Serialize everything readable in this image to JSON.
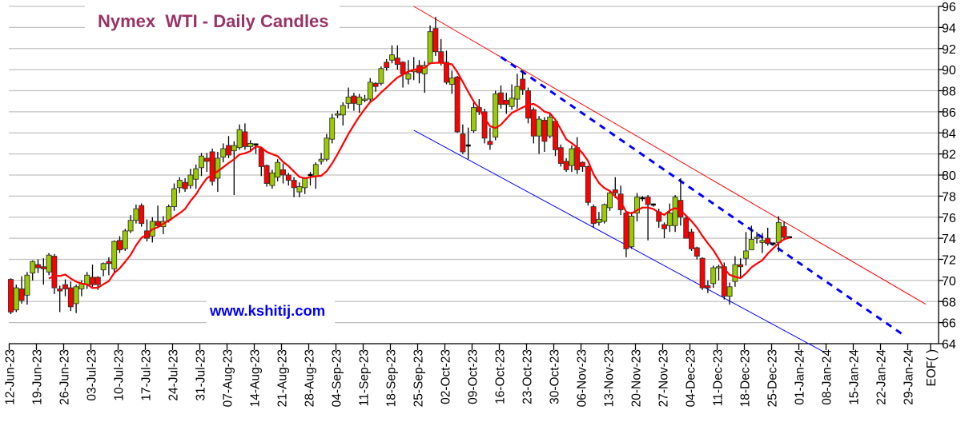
{
  "chart_data": {
    "type": "candlestick",
    "title": "Nymex  WTI - Daily Candles",
    "watermark": "www.kshitij.com",
    "ylim": [
      64,
      96
    ],
    "yticks": [
      64,
      66,
      68,
      70,
      72,
      74,
      76,
      78,
      80,
      82,
      84,
      86,
      88,
      90,
      92,
      94,
      96
    ],
    "y_axis_side": "right",
    "grid": true,
    "xtick_labels": [
      "12-Jun-23",
      "19-Jun-23",
      "26-Jun-23",
      "03-Jul-23",
      "10-Jul-23",
      "17-Jul-23",
      "24-Jul-23",
      "31-Jul-23",
      "07-Aug-23",
      "14-Aug-23",
      "21-Aug-23",
      "28-Aug-23",
      "04-Sep-23",
      "11-Sep-23",
      "18-Sep-23",
      "25-Sep-23",
      "02-Oct-23",
      "09-Oct-23",
      "16-Oct-23",
      "23-Oct-23",
      "30-Oct-23",
      "06-Nov-23",
      "13-Nov-23",
      "20-Nov-23",
      "27-Nov-23",
      "04-Dec-23",
      "11-Dec-23",
      "18-Dec-23",
      "25-Dec-23",
      "01-Jan-24",
      "08-Jan-24",
      "15-Jan-24",
      "22-Jan-24",
      "29-Jan-24"
    ],
    "xtick_end_label": "EOF( )",
    "candle_fields": [
      "open",
      "high",
      "low",
      "close"
    ],
    "candles": [
      [
        70.1,
        70.2,
        66.8,
        67.0
      ],
      [
        67.2,
        69.6,
        67.0,
        69.3
      ],
      [
        69.2,
        70.4,
        67.8,
        68.1
      ],
      [
        68.6,
        70.8,
        67.7,
        70.5
      ],
      [
        70.7,
        71.9,
        70.0,
        71.8
      ],
      [
        71.5,
        72.0,
        70.7,
        71.2
      ],
      [
        71.3,
        72.1,
        69.6,
        71.1
      ],
      [
        70.8,
        72.6,
        70.5,
        72.4
      ],
      [
        72.3,
        72.5,
        68.7,
        69.3
      ],
      [
        69.2,
        69.5,
        67.0,
        69.0
      ],
      [
        69.6,
        70.1,
        68.5,
        69.2
      ],
      [
        69.3,
        69.9,
        67.1,
        67.5
      ],
      [
        67.8,
        69.6,
        66.9,
        69.4
      ],
      [
        69.2,
        70.0,
        68.5,
        69.7
      ],
      [
        69.6,
        70.8,
        69.2,
        70.5
      ],
      [
        70.3,
        71.5,
        69.4,
        69.6
      ],
      [
        70.3,
        70.4,
        69.1,
        69.6
      ],
      [
        71.0,
        71.7,
        70.4,
        71.6
      ],
      [
        71.8,
        72.2,
        70.5,
        71.6
      ],
      [
        71.1,
        73.8,
        70.8,
        73.7
      ],
      [
        73.8,
        74.2,
        72.6,
        72.9
      ],
      [
        73.0,
        74.9,
        72.8,
        74.7
      ],
      [
        74.7,
        76.2,
        74.5,
        75.7
      ],
      [
        75.7,
        77.2,
        75.4,
        76.8
      ],
      [
        77.1,
        77.3,
        75.1,
        75.4
      ],
      [
        74.7,
        75.8,
        73.7,
        74.0
      ],
      [
        74.2,
        76.0,
        73.6,
        75.6
      ],
      [
        75.6,
        77.1,
        75.0,
        75.2
      ],
      [
        75.1,
        76.1,
        74.4,
        75.6
      ],
      [
        75.7,
        77.2,
        75.5,
        77.0
      ],
      [
        77.0,
        79.2,
        76.6,
        78.7
      ],
      [
        78.8,
        79.8,
        78.3,
        79.5
      ],
      [
        79.3,
        79.7,
        78.4,
        78.7
      ],
      [
        79.0,
        80.6,
        78.7,
        80.0
      ],
      [
        79.6,
        81.0,
        78.7,
        80.6
      ],
      [
        80.7,
        82.1,
        79.9,
        81.8
      ],
      [
        81.6,
        82.1,
        80.3,
        81.3
      ],
      [
        82.2,
        82.5,
        79.0,
        79.4
      ],
      [
        79.7,
        82.2,
        78.4,
        81.6
      ],
      [
        81.7,
        83.0,
        81.2,
        82.5
      ],
      [
        82.8,
        83.7,
        81.6,
        81.9
      ],
      [
        82.3,
        83.2,
        78.1,
        82.8
      ],
      [
        82.6,
        84.8,
        82.4,
        84.3
      ],
      [
        84.1,
        84.9,
        82.4,
        82.7
      ],
      [
        82.7,
        83.3,
        82.2,
        83.0
      ],
      [
        82.9,
        83.0,
        82.0,
        82.9
      ],
      [
        82.5,
        82.6,
        79.9,
        80.8
      ],
      [
        80.9,
        81.0,
        78.9,
        79.2
      ],
      [
        79.0,
        80.5,
        78.7,
        80.2
      ],
      [
        79.8,
        81.5,
        79.4,
        81.2
      ],
      [
        80.5,
        81.1,
        79.2,
        80.0
      ],
      [
        80.0,
        80.2,
        79.0,
        79.5
      ],
      [
        79.5,
        79.8,
        77.9,
        78.8
      ],
      [
        78.4,
        79.3,
        77.9,
        78.9
      ],
      [
        78.8,
        79.8,
        78.2,
        79.7
      ],
      [
        80.0,
        80.3,
        79.0,
        80.0
      ],
      [
        79.9,
        81.2,
        78.7,
        81.0
      ],
      [
        81.3,
        82.1,
        81.0,
        81.5
      ],
      [
        81.5,
        83.9,
        81.3,
        83.5
      ],
      [
        83.4,
        85.8,
        83.0,
        85.4
      ],
      [
        85.7,
        86.1,
        85.4,
        85.8
      ],
      [
        85.7,
        86.9,
        84.7,
        86.6
      ],
      [
        86.8,
        88.3,
        86.3,
        87.4
      ],
      [
        87.5,
        87.8,
        86.1,
        86.8
      ],
      [
        86.7,
        87.7,
        85.9,
        87.4
      ],
      [
        87.1,
        87.6,
        86.9,
        87.2
      ],
      [
        87.2,
        89.2,
        86.9,
        88.8
      ],
      [
        88.7,
        88.8,
        87.9,
        88.4
      ],
      [
        88.7,
        90.3,
        88.5,
        90.1
      ],
      [
        90.7,
        91.0,
        89.9,
        90.2
      ],
      [
        90.9,
        92.3,
        90.6,
        91.4
      ],
      [
        91.1,
        92.3,
        90.0,
        90.5
      ],
      [
        90.7,
        90.8,
        88.3,
        89.6
      ],
      [
        89.1,
        90.9,
        88.6,
        89.6
      ],
      [
        89.8,
        91.2,
        89.0,
        90.0
      ],
      [
        90.4,
        90.9,
        88.7,
        89.7
      ],
      [
        89.6,
        90.8,
        87.8,
        90.4
      ],
      [
        90.6,
        94.2,
        90.5,
        93.6
      ],
      [
        93.9,
        95.0,
        91.3,
        91.7
      ],
      [
        91.7,
        92.9,
        90.4,
        90.7
      ],
      [
        90.7,
        91.8,
        88.6,
        88.8
      ],
      [
        88.6,
        89.9,
        87.7,
        89.2
      ],
      [
        89.3,
        89.4,
        84.0,
        84.1
      ],
      [
        83.9,
        84.8,
        82.0,
        82.2
      ],
      [
        82.8,
        84.5,
        81.5,
        82.8
      ],
      [
        84.2,
        86.9,
        84.0,
        86.4
      ],
      [
        86.4,
        87.2,
        85.7,
        86.0
      ],
      [
        86.0,
        86.3,
        83.0,
        83.5
      ],
      [
        83.2,
        84.5,
        82.4,
        82.9
      ],
      [
        83.6,
        88.0,
        83.3,
        87.7
      ],
      [
        87.8,
        88.5,
        86.3,
        86.7
      ],
      [
        87.1,
        87.8,
        85.8,
        86.7
      ],
      [
        86.5,
        88.6,
        86.2,
        87.3
      ],
      [
        87.2,
        89.6,
        86.3,
        88.4
      ],
      [
        89.1,
        89.9,
        87.6,
        88.1
      ],
      [
        88.0,
        88.3,
        84.9,
        85.4
      ],
      [
        86.2,
        86.4,
        83.0,
        83.7
      ],
      [
        83.7,
        85.6,
        82.0,
        85.3
      ],
      [
        85.2,
        85.5,
        82.2,
        83.2
      ],
      [
        83.7,
        85.9,
        83.5,
        85.5
      ],
      [
        85.1,
        85.3,
        81.8,
        82.4
      ],
      [
        82.6,
        82.9,
        80.8,
        81.1
      ],
      [
        81.3,
        81.6,
        80.3,
        80.5
      ],
      [
        80.9,
        82.8,
        80.3,
        82.5
      ],
      [
        82.6,
        83.6,
        80.1,
        80.5
      ],
      [
        81.2,
        81.3,
        80.3,
        80.8
      ],
      [
        80.8,
        80.9,
        77.1,
        77.4
      ],
      [
        77.0,
        77.2,
        75.0,
        75.4
      ],
      [
        75.5,
        76.5,
        75.2,
        75.8
      ],
      [
        75.6,
        77.3,
        75.4,
        77.2
      ],
      [
        76.9,
        78.6,
        76.6,
        78.3
      ],
      [
        78.6,
        79.8,
        77.8,
        78.3
      ],
      [
        78.2,
        79.0,
        76.2,
        76.7
      ],
      [
        76.4,
        76.6,
        72.2,
        73.0
      ],
      [
        73.2,
        76.5,
        73.0,
        76.1
      ],
      [
        76.4,
        78.3,
        75.6,
        77.9
      ],
      [
        77.8,
        78.0,
        77.5,
        77.8
      ],
      [
        77.9,
        78.1,
        73.8,
        77.2
      ],
      [
        77.2,
        77.3,
        77.0,
        77.2
      ],
      [
        76.5,
        76.8,
        75.0,
        75.6
      ],
      [
        75.3,
        75.5,
        74.0,
        74.9
      ],
      [
        75.2,
        77.3,
        74.6,
        76.4
      ],
      [
        75.2,
        78.1,
        74.6,
        77.9
      ],
      [
        77.6,
        79.7,
        75.2,
        76.0
      ],
      [
        75.9,
        76.2,
        74.0,
        74.0
      ],
      [
        74.6,
        74.9,
        72.8,
        73.0
      ],
      [
        73.1,
        73.2,
        72.0,
        72.3
      ],
      [
        72.1,
        72.2,
        69.1,
        69.3
      ],
      [
        69.5,
        70.0,
        68.8,
        69.3
      ],
      [
        69.7,
        71.4,
        69.3,
        71.2
      ],
      [
        71.2,
        71.5,
        70.0,
        71.3
      ],
      [
        71.3,
        71.7,
        68.2,
        68.5
      ],
      [
        68.5,
        69.8,
        67.7,
        69.4
      ],
      [
        69.9,
        72.3,
        69.4,
        71.5
      ],
      [
        71.5,
        72.1,
        70.2,
        71.3
      ],
      [
        72.1,
        74.6,
        71.4,
        72.8
      ],
      [
        72.9,
        75.2,
        72.9,
        73.9
      ],
      [
        74.0,
        74.6,
        73.5,
        74.1
      ],
      [
        73.6,
        74.5,
        72.6,
        73.8
      ],
      [
        74.0,
        75.0,
        73.3,
        73.5
      ],
      [
        73.5,
        73.6,
        73.3,
        73.5
      ],
      [
        73.6,
        76.1,
        72.7,
        75.5
      ],
      [
        75.1,
        75.6,
        73.8,
        74.1
      ],
      [
        74.1,
        74.1,
        74.0,
        74.1
      ]
    ],
    "moving_average": {
      "color": "#ff0000",
      "period": 8
    },
    "trendlines": [
      {
        "name": "upper-channel",
        "color": "#ff0000",
        "style": "solid",
        "start": [
          "2023-09-22",
          96.0
        ],
        "end": [
          "2024-02-01",
          67.75
        ]
      },
      {
        "name": "lower-channel",
        "color": "#0000ff",
        "style": "solid",
        "start": [
          "2023-09-22",
          84.25
        ],
        "end": [
          "2024-01-05",
          63.3
        ]
      },
      {
        "name": "dashed-resistance",
        "color": "#0000ff",
        "style": "dashed",
        "start": [
          "2023-10-16",
          91.2
        ],
        "end": [
          "2024-01-26",
          64.8
        ]
      }
    ],
    "colors": {
      "up": "#99cc00",
      "down": "#ff0000",
      "doji": "#000000",
      "title": "#993366",
      "watermark": "#0000ff",
      "grid": "#c0c0c0"
    }
  }
}
